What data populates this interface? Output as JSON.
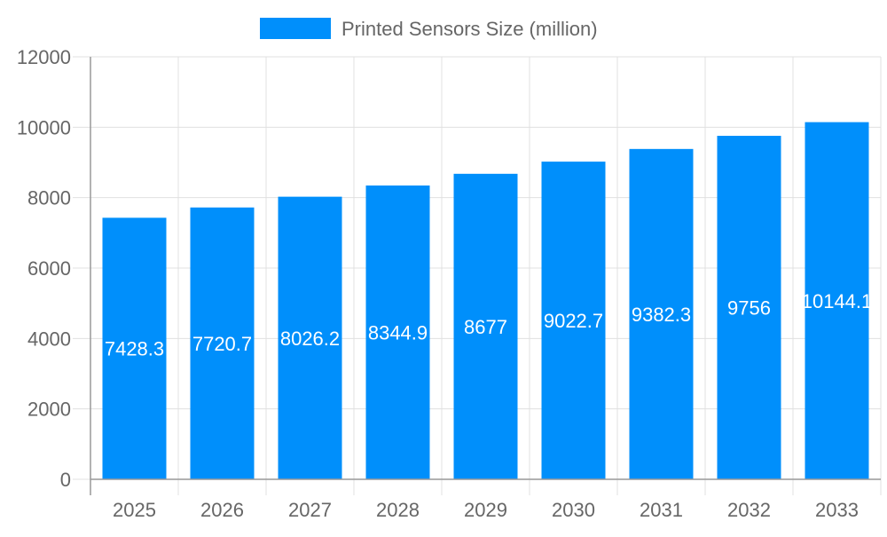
{
  "chart_data": {
    "type": "bar",
    "title": "",
    "xlabel": "",
    "ylabel": "",
    "categories": [
      "2025",
      "2026",
      "2027",
      "2028",
      "2029",
      "2030",
      "2031",
      "2032",
      "2033"
    ],
    "series": [
      {
        "name": "Printed Sensors Size (million)",
        "values": [
          7428.3,
          7720.7,
          8026.2,
          8344.9,
          8677,
          9022.7,
          9382.3,
          9756,
          10144.1
        ],
        "color": "#008ffb"
      }
    ],
    "data_labels": [
      "7428.3",
      "7720.7",
      "8026.2",
      "8344.9",
      "8677",
      "9022.7",
      "9382.3",
      "9756",
      "10144.1"
    ],
    "ylim": [
      0,
      12000
    ],
    "yticks": [
      "0",
      "2000",
      "4000",
      "6000",
      "8000",
      "10000",
      "12000"
    ],
    "grid": true,
    "legend_position": "top"
  }
}
